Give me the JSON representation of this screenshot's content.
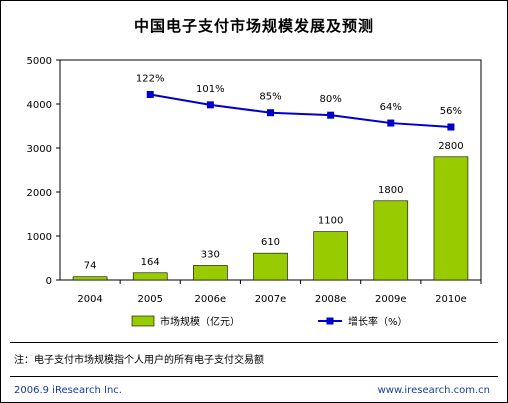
{
  "title": "中国电子支付市场规模发展及预测",
  "note": "注：电子支付市场规模指个人用户的所有电子支付交易额",
  "footer": {
    "left": "2006.9 iResearch Inc.",
    "right": "www.iresearch.com.cn"
  },
  "colors": {
    "bar": "#99cc00",
    "line": "#0000cc",
    "plot_bg": "#ffffff"
  },
  "chart_data": {
    "type": "bar",
    "categories": [
      "2004",
      "2005",
      "2006e",
      "2007e",
      "2008e",
      "2009e",
      "2010e"
    ],
    "y_ticks": [
      "0",
      "1000",
      "2000",
      "3000",
      "4000",
      "5000"
    ],
    "ylim": [
      0,
      5000
    ],
    "grid": false,
    "legend_position": "bottom",
    "series": [
      {
        "name": "市场规模（亿元）",
        "type": "bar",
        "values": [
          74,
          164,
          330,
          610,
          1100,
          1800,
          2800
        ],
        "labels": [
          "74",
          "164",
          "330",
          "610",
          "1100",
          "1800",
          "2800"
        ]
      },
      {
        "name": "增长率（%）",
        "type": "line",
        "values": [
          null,
          122,
          101,
          85,
          80,
          64,
          56
        ],
        "labels": [
          "",
          "122%",
          "101%",
          "85%",
          "80%",
          "64%",
          "56%"
        ]
      }
    ]
  }
}
